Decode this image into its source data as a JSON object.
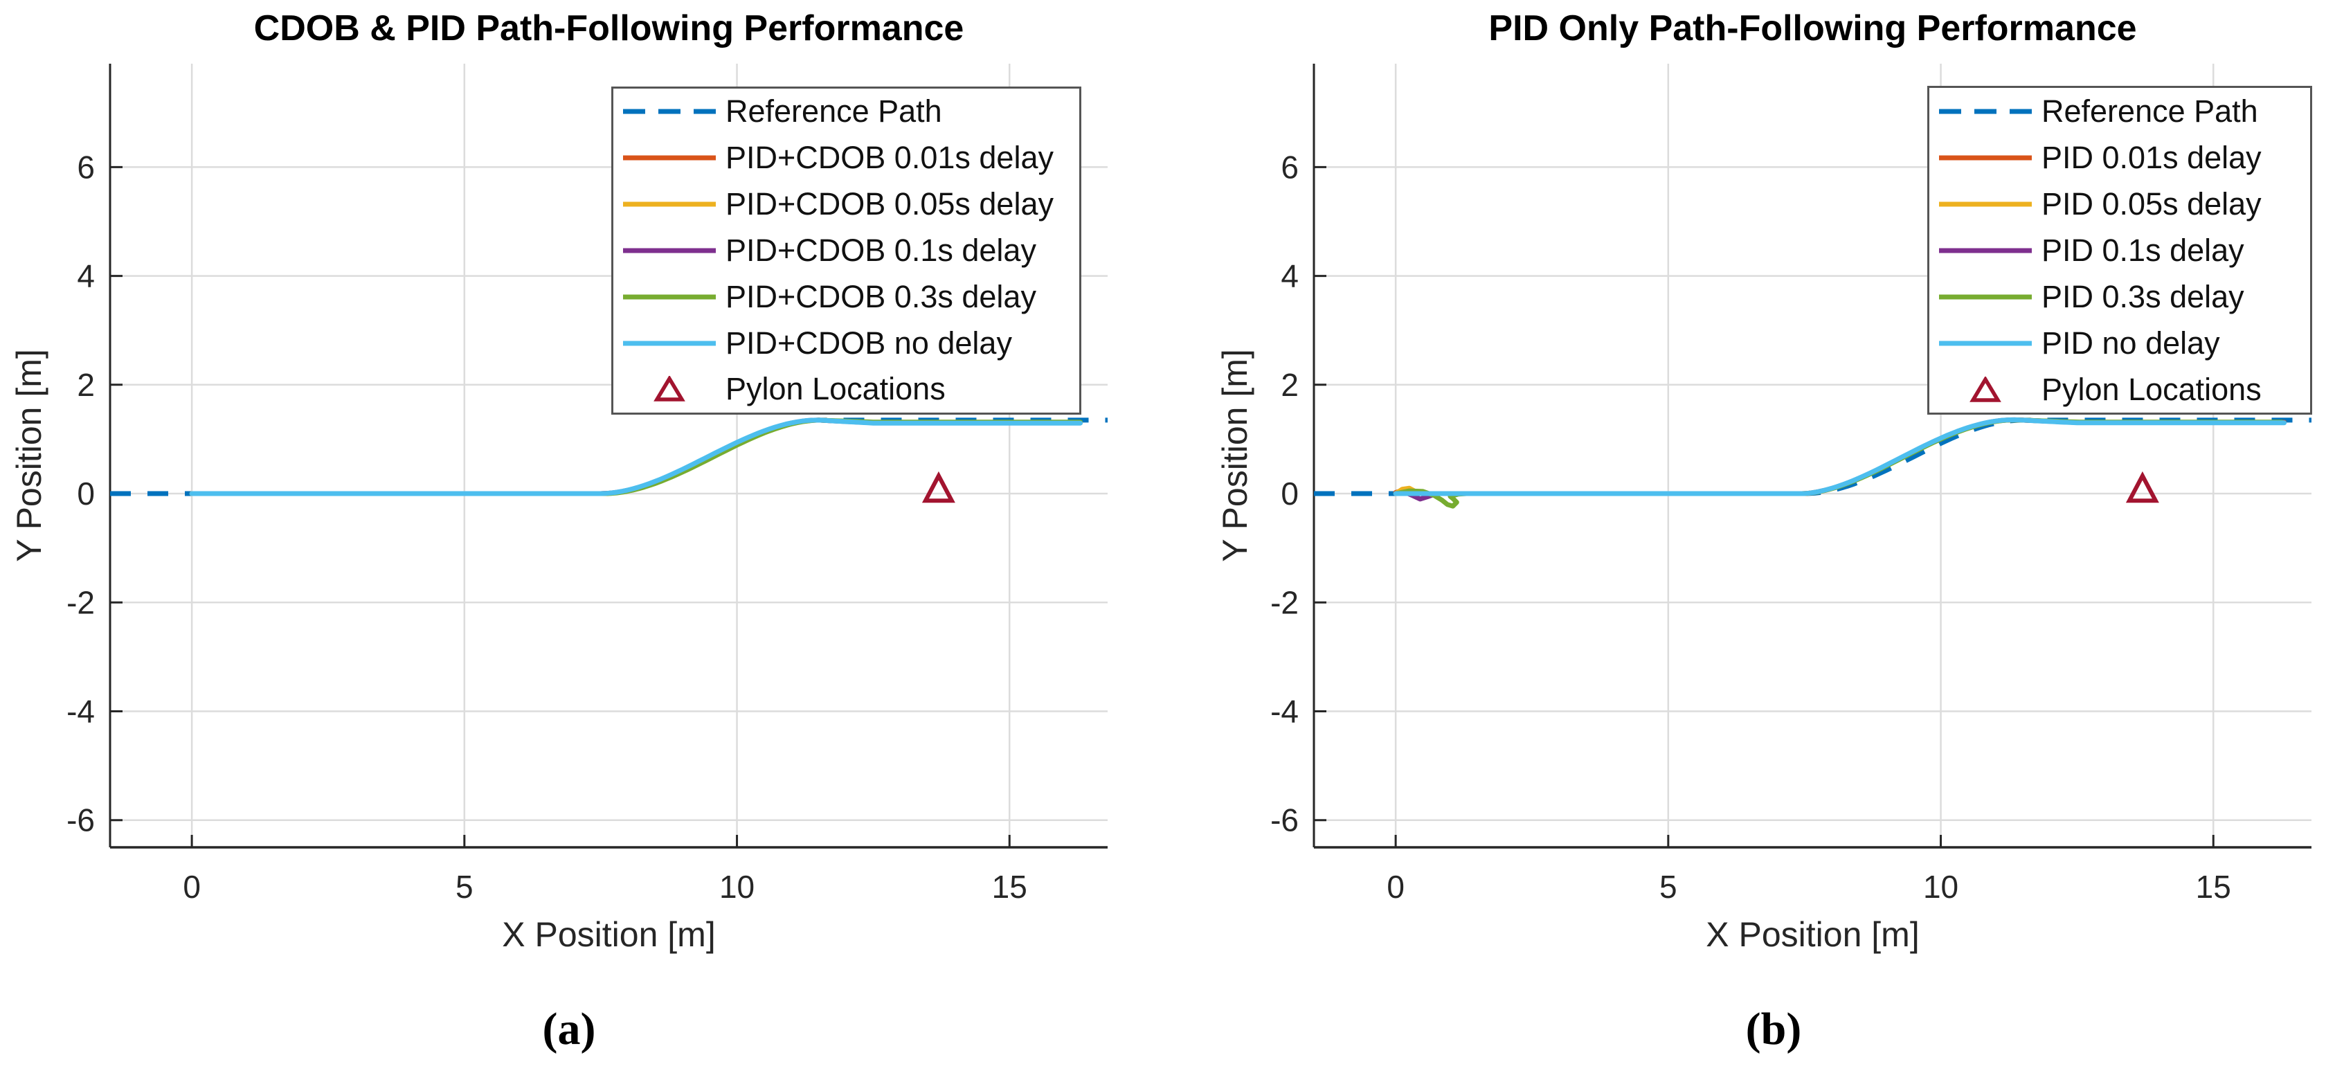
{
  "figure_type": "dual-panel path-following comparison figure",
  "chart_data": [
    {
      "type": "line",
      "panel": "a",
      "caption": "(a)",
      "title": "CDOB & PID Path-Following Performance",
      "xlabel": "X Position [m]",
      "ylabel": "Y Position [m]",
      "xlim": [
        -1.5,
        16.8
      ],
      "ylim": [
        -6.5,
        7.9
      ],
      "xticks": [
        0,
        5,
        10,
        15
      ],
      "yticks": [
        -6,
        -4,
        -2,
        0,
        2,
        4,
        6
      ],
      "grid": true,
      "legend_position": "upper right inside axes",
      "reference_path": {
        "label": "Reference Path",
        "color": "#0072BD",
        "style": "dashed",
        "x_range": [
          -1.5,
          16.8
        ],
        "shape": {
          "flat_y": 0,
          "rise_start_x": 7.5,
          "rise_end_x": 11.5,
          "final_y": 1.35,
          "easing": "smoothstep"
        },
        "key_points": [
          [
            -1.5,
            0
          ],
          [
            0,
            0
          ],
          [
            7.5,
            0
          ],
          [
            8,
            0.06
          ],
          [
            8.5,
            0.21
          ],
          [
            9,
            0.43
          ],
          [
            9.5,
            0.68
          ],
          [
            10,
            0.92
          ],
          [
            10.5,
            1.14
          ],
          [
            11,
            1.29
          ],
          [
            11.5,
            1.35
          ],
          [
            13,
            1.35
          ],
          [
            15,
            1.35
          ],
          [
            16.8,
            1.35
          ]
        ]
      },
      "series": [
        {
          "label": "PID+CDOB 0.01s delay",
          "color": "#D95319",
          "x_start": 0,
          "x_end": 16.3,
          "rise_offset": 0.0,
          "settle_offset": -0.045,
          "transient": []
        },
        {
          "label": "PID+CDOB 0.05s delay",
          "color": "#EDB120",
          "x_start": 0,
          "x_end": 16.3,
          "rise_offset": -0.012,
          "settle_offset": -0.045,
          "transient": []
        },
        {
          "label": "PID+CDOB 0.1s delay",
          "color": "#7E2F8E",
          "x_start": 0,
          "x_end": 16.3,
          "rise_offset": 0.012,
          "settle_offset": -0.05,
          "transient": []
        },
        {
          "label": "PID+CDOB 0.3s delay",
          "color": "#77AC30",
          "x_start": 0,
          "x_end": 16.3,
          "rise_offset": -0.035,
          "settle_offset": -0.035,
          "transient": []
        },
        {
          "label": "PID+CDOB no delay",
          "color": "#4DBEEE",
          "x_start": 0,
          "x_end": 16.3,
          "rise_offset": 0.02,
          "settle_offset": -0.055,
          "transient": []
        }
      ],
      "pylons": {
        "label": "Pylon Locations",
        "color": "#A2142F",
        "points": [
          [
            13.7,
            0.06
          ]
        ]
      }
    },
    {
      "type": "line",
      "panel": "b",
      "caption": "(b)",
      "title": "PID Only Path-Following Performance",
      "xlabel": "X Position [m]",
      "ylabel": "Y Position [m]",
      "xlim": [
        -1.5,
        16.8
      ],
      "ylim": [
        -6.5,
        7.9
      ],
      "xticks": [
        0,
        5,
        10,
        15
      ],
      "yticks": [
        -6,
        -4,
        -2,
        0,
        2,
        4,
        6
      ],
      "grid": true,
      "legend_position": "upper right inside axes",
      "reference_path": {
        "label": "Reference Path",
        "color": "#0072BD",
        "style": "dashed",
        "x_range": [
          -1.5,
          16.8
        ],
        "shape": {
          "flat_y": 0,
          "rise_start_x": 7.5,
          "rise_end_x": 11.5,
          "final_y": 1.35,
          "easing": "smoothstep"
        },
        "key_points": [
          [
            -1.5,
            0
          ],
          [
            0,
            0
          ],
          [
            7.5,
            0
          ],
          [
            8,
            0.06
          ],
          [
            8.5,
            0.21
          ],
          [
            9,
            0.43
          ],
          [
            9.5,
            0.68
          ],
          [
            10,
            0.92
          ],
          [
            10.5,
            1.14
          ],
          [
            11,
            1.29
          ],
          [
            11.5,
            1.35
          ],
          [
            13,
            1.35
          ],
          [
            15,
            1.35
          ],
          [
            16.8,
            1.35
          ]
        ]
      },
      "series": [
        {
          "label": "PID 0.01s delay",
          "color": "#D95319",
          "x_start": 0,
          "x_end": 16.3,
          "rise_offset": 0.09,
          "settle_offset": -0.04,
          "transient": [
            [
              0,
              0.02
            ],
            [
              0.12,
              0.06
            ],
            [
              0.22,
              0.07
            ],
            [
              0.32,
              0.04
            ],
            [
              0.45,
              0.01
            ],
            [
              0.55,
              0
            ]
          ]
        },
        {
          "label": "PID 0.05s delay",
          "color": "#EDB120",
          "x_start": 0,
          "x_end": 16.3,
          "rise_offset": 0.095,
          "settle_offset": -0.04,
          "transient": [
            [
              0,
              0
            ],
            [
              0.12,
              0.08
            ],
            [
              0.25,
              0.1
            ],
            [
              0.38,
              0.03
            ],
            [
              0.5,
              0
            ]
          ]
        },
        {
          "label": "PID 0.1s delay",
          "color": "#7E2F8E",
          "x_start": 0,
          "x_end": 16.3,
          "rise_offset": 0.1,
          "settle_offset": -0.045,
          "transient": [
            [
              0,
              0
            ],
            [
              0.18,
              0.02
            ],
            [
              0.32,
              -0.04
            ],
            [
              0.45,
              -0.1
            ],
            [
              0.58,
              -0.06
            ],
            [
              0.72,
              -0.01
            ],
            [
              0.8,
              0
            ]
          ]
        },
        {
          "label": "PID 0.3s delay",
          "color": "#77AC30",
          "x_start": 0,
          "x_end": 16.3,
          "rise_offset": 0.085,
          "settle_offset": -0.035,
          "transient": [
            [
              0,
              0
            ],
            [
              0.25,
              0.05
            ],
            [
              0.5,
              0.04
            ],
            [
              0.7,
              -0.03
            ],
            [
              0.85,
              -0.12
            ],
            [
              0.95,
              -0.2
            ],
            [
              1.05,
              -0.23
            ],
            [
              1.12,
              -0.16
            ],
            [
              1.05,
              -0.09
            ],
            [
              1.0,
              -0.05
            ],
            [
              1.15,
              -0.01
            ],
            [
              1.3,
              0
            ]
          ]
        },
        {
          "label": "PID no delay",
          "color": "#4DBEEE",
          "x_start": 0,
          "x_end": 16.3,
          "rise_offset": 0.105,
          "settle_offset": -0.05,
          "transient": []
        }
      ],
      "pylons": {
        "label": "Pylon Locations",
        "color": "#A2142F",
        "points": [
          [
            13.7,
            0.06
          ]
        ]
      }
    }
  ],
  "style": {
    "grid_color": "#dcdcdc",
    "axis_color": "#262626",
    "legend_border_color": "#555555",
    "line_width": 7,
    "dash_pattern": "30 24"
  }
}
